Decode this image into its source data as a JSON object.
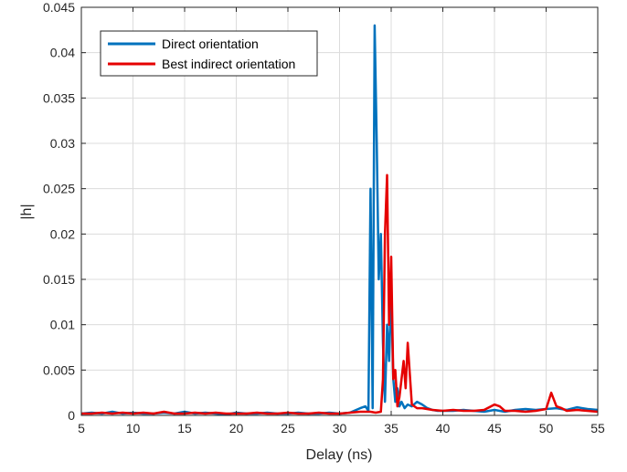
{
  "chart_data": {
    "type": "line",
    "title": "",
    "xlabel": "Delay (ns)",
    "ylabel": "|h|",
    "xlim": [
      5,
      55
    ],
    "ylim": [
      0,
      0.045
    ],
    "xticks": [
      5,
      10,
      15,
      20,
      25,
      30,
      35,
      40,
      45,
      50,
      55
    ],
    "xtick_labels": [
      "5",
      "10",
      "15",
      "20",
      "25",
      "30",
      "35",
      "40",
      "45",
      "50",
      "55"
    ],
    "yticks": [
      0,
      0.005,
      0.01,
      0.015,
      0.02,
      0.025,
      0.03,
      0.035,
      0.04,
      0.045
    ],
    "ytick_labels": [
      "0",
      "0.005",
      "0.01",
      "0.015",
      "0.02",
      "0.025",
      "0.03",
      "0.035",
      "0.04",
      "0.045"
    ],
    "grid": true,
    "legend_position": "top-left",
    "series": [
      {
        "name": "Direct orientation",
        "color": "#0072BD",
        "x": [
          5,
          6,
          7,
          8,
          9,
          10,
          11,
          12,
          13,
          14,
          15,
          16,
          17,
          18,
          19,
          20,
          21,
          22,
          23,
          24,
          25,
          26,
          27,
          28,
          29,
          30,
          31,
          32,
          32.5,
          32.8,
          33.0,
          33.2,
          33.4,
          33.6,
          33.8,
          34.0,
          34.2,
          34.4,
          34.6,
          34.8,
          35.0,
          35.2,
          35.4,
          35.6,
          35.8,
          36.0,
          36.3,
          36.6,
          37.0,
          37.5,
          38.0,
          38.5,
          39.0,
          39.5,
          40,
          41,
          42,
          43,
          44,
          45,
          46,
          47,
          48,
          49,
          50,
          51,
          52,
          53,
          54,
          55
        ],
        "y": [
          0.0002,
          0.0003,
          0.0002,
          0.0004,
          0.0002,
          0.0003,
          0.0002,
          0.0002,
          0.0003,
          0.0002,
          0.0004,
          0.0002,
          0.0003,
          0.0002,
          0.0001,
          0.0003,
          0.0002,
          0.0002,
          0.0003,
          0.0002,
          0.0002,
          0.0003,
          0.0002,
          0.0002,
          0.0003,
          0.0002,
          0.0003,
          0.0008,
          0.001,
          0.0005,
          0.025,
          0.0008,
          0.043,
          0.03,
          0.015,
          0.02,
          0.008,
          0.0015,
          0.01,
          0.006,
          0.014,
          0.004,
          0.0015,
          0.003,
          0.001,
          0.0015,
          0.0008,
          0.0012,
          0.001,
          0.0015,
          0.0012,
          0.0008,
          0.0006,
          0.0005,
          0.0005,
          0.0005,
          0.0006,
          0.0005,
          0.0004,
          0.0006,
          0.0004,
          0.0006,
          0.0007,
          0.0006,
          0.0007,
          0.0008,
          0.0006,
          0.0009,
          0.0007,
          0.0006
        ]
      },
      {
        "name": "Best indirect orientation",
        "color": "#E50000",
        "x": [
          5,
          6,
          7,
          8,
          9,
          10,
          11,
          12,
          13,
          14,
          15,
          16,
          17,
          18,
          19,
          20,
          21,
          22,
          23,
          24,
          25,
          26,
          27,
          28,
          29,
          30,
          31,
          32,
          33.0,
          33.5,
          34.0,
          34.2,
          34.4,
          34.6,
          34.8,
          35.0,
          35.2,
          35.4,
          35.6,
          35.8,
          36.0,
          36.2,
          36.4,
          36.6,
          37.0,
          37.5,
          38.0,
          39,
          40,
          41,
          42,
          43,
          44,
          45,
          45.5,
          46,
          47,
          48,
          49,
          50,
          50.5,
          51,
          51.5,
          52,
          53,
          54,
          55
        ],
        "y": [
          0.0002,
          0.0002,
          0.0003,
          0.0002,
          0.0003,
          0.0002,
          0.0003,
          0.0002,
          0.0004,
          0.0002,
          0.0002,
          0.0003,
          0.0002,
          0.0003,
          0.0002,
          0.0002,
          0.0002,
          0.0003,
          0.0002,
          0.0002,
          0.0003,
          0.0002,
          0.0002,
          0.0003,
          0.0002,
          0.0002,
          0.0003,
          0.0004,
          0.0004,
          0.0003,
          0.0004,
          0.004,
          0.02,
          0.0265,
          0.01,
          0.0175,
          0.004,
          0.005,
          0.001,
          0.002,
          0.004,
          0.006,
          0.003,
          0.008,
          0.0012,
          0.0008,
          0.0008,
          0.0006,
          0.0005,
          0.0006,
          0.0005,
          0.0005,
          0.0006,
          0.0012,
          0.001,
          0.0005,
          0.0005,
          0.0004,
          0.0005,
          0.0007,
          0.0025,
          0.001,
          0.0008,
          0.0005,
          0.0006,
          0.0005,
          0.0004
        ]
      }
    ]
  }
}
